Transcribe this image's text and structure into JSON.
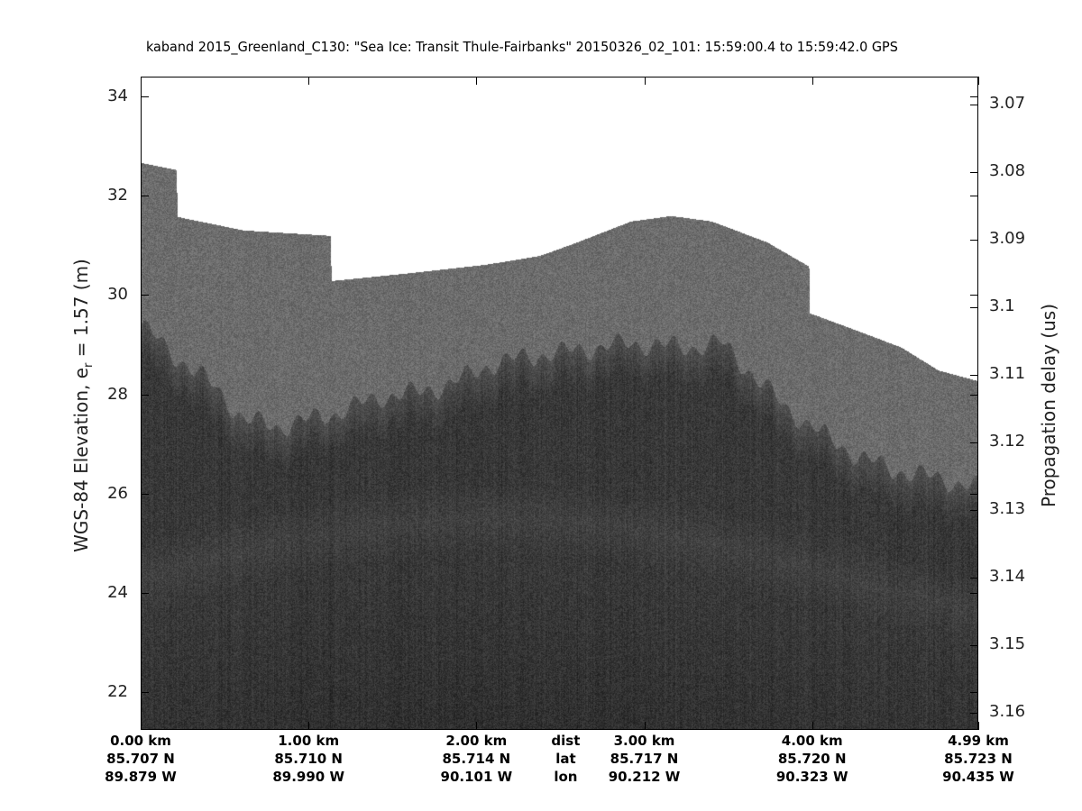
{
  "chart_data": {
    "type": "heatmap",
    "title": "kaband 2015_Greenland_C130: \"Sea Ice: Transit Thule-Fairbanks\"  20150326_02_101: 15:59:00.4 to 15:59:42.0 GPS",
    "ylabel": "WGS-84 Elevation, e",
    "ylabel_subscript": "r",
    "ylabel_suffix": " = 1.57 (m)",
    "y2label": "Propagation delay (us)",
    "ylim": [
      21.24,
      34.4
    ],
    "y2lim": [
      3.0659,
      3.1625
    ],
    "xlim_km": [
      0,
      4.99
    ],
    "yticks": [
      "34",
      "32",
      "30",
      "28",
      "26",
      "24",
      "22"
    ],
    "y2ticks": [
      "3.07",
      "3.08",
      "3.09",
      "3.1",
      "3.11",
      "3.12",
      "3.13",
      "3.14",
      "3.15",
      "3.16"
    ],
    "x_rows": [
      {
        "km": 0.0,
        "dist": "0.00 km",
        "lat": "85.707 N",
        "lon": "89.879 W"
      },
      {
        "km": 1.0,
        "dist": "1.00 km",
        "lat": "85.710 N",
        "lon": "89.990 W"
      },
      {
        "km": 2.0,
        "dist": "2.00 km",
        "lat": "85.714 N",
        "lon": "90.101 W"
      },
      {
        "km": 3.0,
        "dist": "3.00 km",
        "lat": "85.717 N",
        "lon": "90.212 W"
      },
      {
        "km": 4.0,
        "dist": "4.00 km",
        "lat": "85.720 N",
        "lon": "90.323 W"
      },
      {
        "km": 4.99,
        "dist": "4.99 km",
        "lat": "85.723 N",
        "lon": "90.435 W"
      }
    ],
    "row_labels": {
      "dist": "dist",
      "lat": "lat",
      "lon": "lon"
    },
    "data_top_profile": [
      [
        0,
        32.67
      ],
      [
        0.21,
        32.53
      ],
      [
        0.22,
        31.58
      ],
      [
        0.61,
        31.31
      ],
      [
        1.13,
        31.2
      ],
      [
        1.135,
        30.29
      ],
      [
        1.58,
        30.44
      ],
      [
        2.06,
        30.62
      ],
      [
        2.38,
        30.8
      ],
      [
        2.6,
        31.07
      ],
      [
        2.92,
        31.49
      ],
      [
        3.16,
        31.6
      ],
      [
        3.4,
        31.49
      ],
      [
        3.73,
        31.07
      ],
      [
        3.98,
        30.58
      ],
      [
        3.985,
        29.64
      ],
      [
        4.32,
        29.22
      ],
      [
        4.53,
        28.95
      ],
      [
        4.75,
        28.49
      ],
      [
        4.99,
        28.27
      ]
    ],
    "surface_profile": [
      [
        0,
        29.4
      ],
      [
        0.18,
        28.85
      ],
      [
        0.45,
        28.13
      ],
      [
        0.61,
        27.49
      ],
      [
        0.83,
        27.36
      ],
      [
        0.99,
        27.49
      ],
      [
        1.2,
        27.67
      ],
      [
        1.42,
        27.95
      ],
      [
        1.63,
        28.04
      ],
      [
        1.85,
        28.22
      ],
      [
        2.06,
        28.58
      ],
      [
        2.28,
        28.76
      ],
      [
        2.49,
        28.85
      ],
      [
        2.71,
        28.95
      ],
      [
        2.92,
        29.04
      ],
      [
        3.24,
        28.95
      ],
      [
        3.46,
        29.04
      ],
      [
        3.62,
        28.49
      ],
      [
        3.83,
        27.76
      ],
      [
        4.05,
        27.22
      ],
      [
        4.27,
        26.76
      ],
      [
        4.48,
        26.49
      ],
      [
        4.75,
        26.31
      ],
      [
        4.99,
        26.13
      ]
    ],
    "colormap": "gray",
    "colors": {
      "above_data": "#ffffff",
      "air_clutter": "#6b6b6b",
      "ice": "#3e3e3e",
      "deep_band": "#4a4a4a"
    }
  }
}
